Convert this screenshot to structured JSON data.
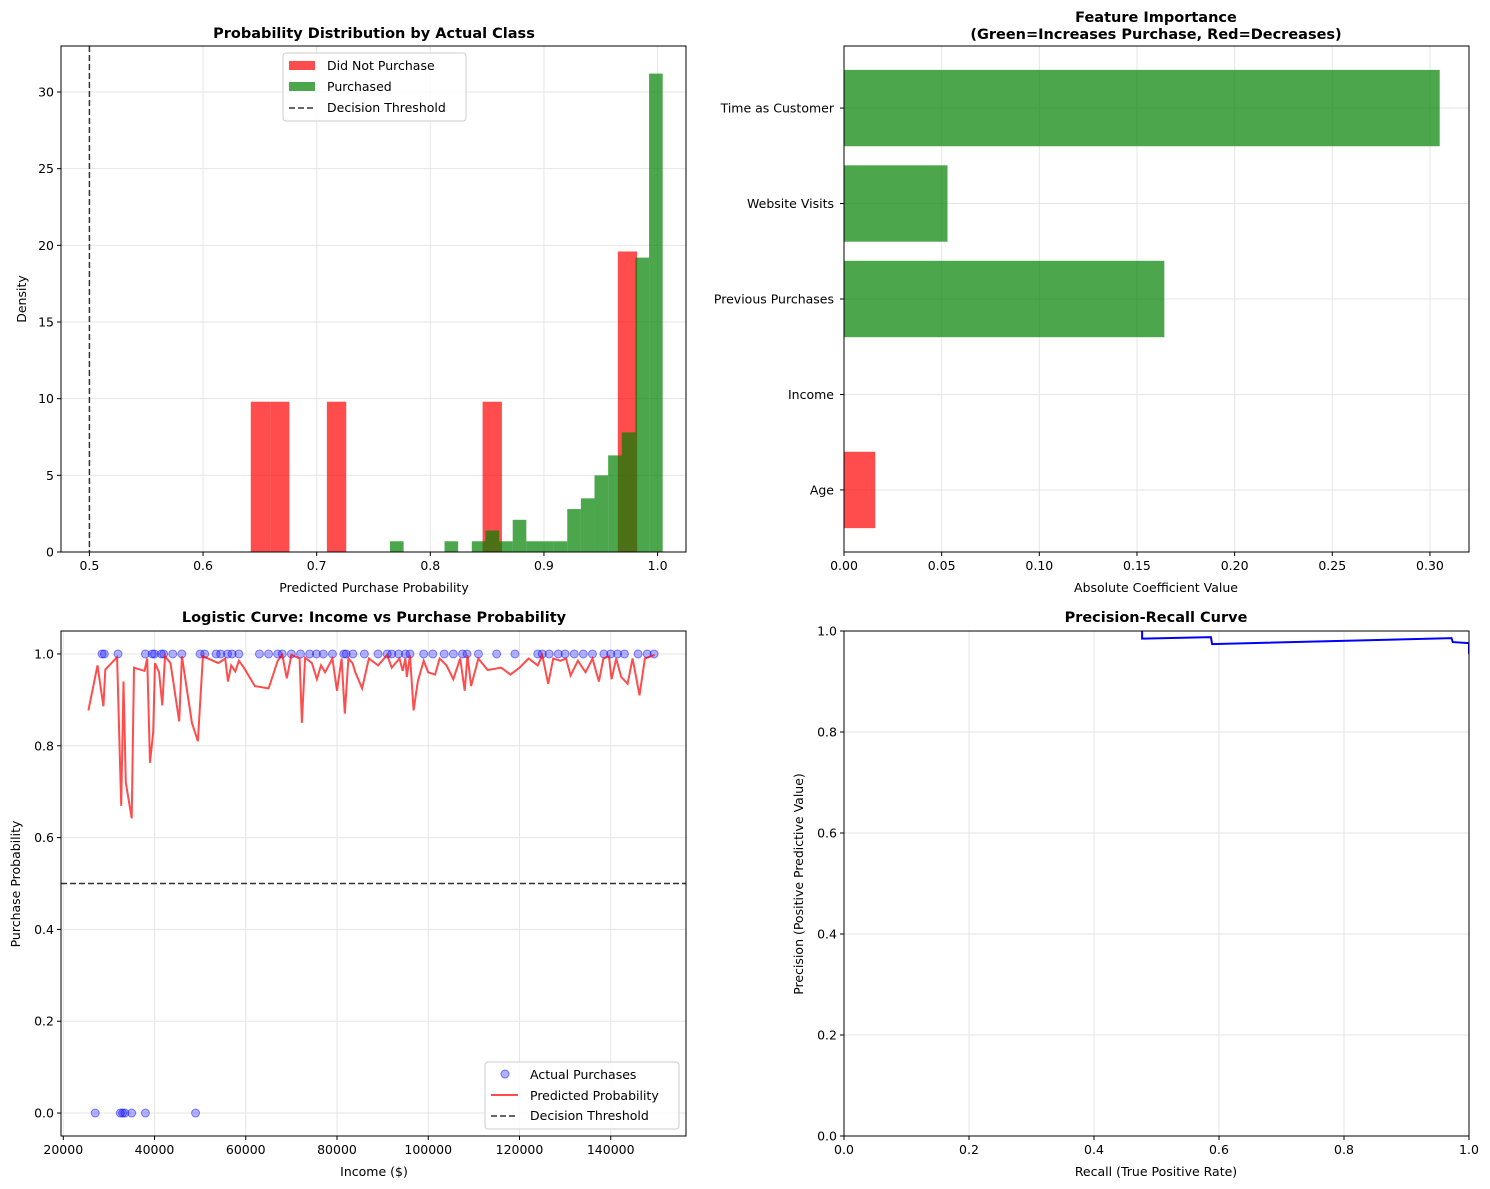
{
  "chart_data": [
    {
      "type": "histogram",
      "title": "Probability Distribution by Actual Class",
      "xlabel": "Predicted Purchase Probability",
      "ylabel": "Density",
      "xlim": [
        0.475,
        1.025
      ],
      "ylim": [
        0,
        33
      ],
      "xticks": [
        0.5,
        0.6,
        0.7,
        0.8,
        0.9,
        1.0
      ],
      "xtick_labels": [
        "0.5",
        "0.6",
        "0.7",
        "0.8",
        "0.9",
        "1.0"
      ],
      "yticks": [
        0,
        5,
        10,
        15,
        20,
        25,
        30
      ],
      "grid": true,
      "legend": "upper-center",
      "legend_entries": [
        "Did Not Purchase",
        "Purchased",
        "Decision Threshold"
      ],
      "threshold": 0.5,
      "series": [
        {
          "name": "Did Not Purchase",
          "color": "#ff0000",
          "bins": [
            [
              0.642,
              0.659,
              9.8
            ],
            [
              0.659,
              0.676,
              9.8
            ],
            [
              0.709,
              0.726,
              9.8
            ],
            [
              0.846,
              0.863,
              9.8
            ],
            [
              0.965,
              0.982,
              19.6
            ]
          ]
        },
        {
          "name": "Purchased",
          "color": "#008000",
          "bins": [
            [
              0.7645,
              0.7765,
              0.7
            ],
            [
              0.7885,
              0.8005,
              0
            ],
            [
              0.8005,
              0.8125,
              0
            ],
            [
              0.8125,
              0.8245,
              0.7
            ],
            [
              0.8365,
              0.8485,
              0.7
            ],
            [
              0.8485,
              0.8605,
              1.4
            ],
            [
              0.8605,
              0.8725,
              0.7
            ],
            [
              0.8725,
              0.8845,
              2.1
            ],
            [
              0.8845,
              0.8965,
              0.7
            ],
            [
              0.8965,
              0.9085,
              0.7
            ],
            [
              0.9085,
              0.9205,
              0.7
            ],
            [
              0.9205,
              0.9325,
              2.8
            ],
            [
              0.9325,
              0.9445,
              3.5
            ],
            [
              0.9445,
              0.9565,
              5.0
            ],
            [
              0.9565,
              0.9685,
              6.3
            ],
            [
              0.9685,
              0.9805,
              7.8
            ],
            [
              0.9805,
              0.9925,
              19.2
            ],
            [
              0.9925,
              1.0045,
              31.2
            ]
          ]
        }
      ]
    },
    {
      "type": "bar",
      "orientation": "horizontal",
      "title": "Feature Importance",
      "subtitle": "(Green=Increases Purchase, Red=Decreases)",
      "xlabel": "Absolute Coefficient Value",
      "ylabel": "",
      "xlim": [
        0,
        0.32
      ],
      "xticks": [
        0.0,
        0.05,
        0.1,
        0.15,
        0.2,
        0.25,
        0.3
      ],
      "xtick_labels": [
        "0.00",
        "0.05",
        "0.10",
        "0.15",
        "0.20",
        "0.25",
        "0.30"
      ],
      "grid": true,
      "categories": [
        "Age",
        "Income",
        "Previous Purchases",
        "Website Visits",
        "Time as Customer"
      ],
      "values": [
        0.016,
        0.0,
        0.164,
        0.053,
        0.305
      ],
      "colors": [
        "#ff0000",
        "#008000",
        "#008000",
        "#008000",
        "#008000"
      ]
    },
    {
      "type": "scatter",
      "title": "Logistic Curve: Income vs Purchase Probability",
      "xlabel": "Income ($)",
      "ylabel": "Purchase Probability",
      "xlim": [
        19500,
        156500
      ],
      "ylim": [
        -0.05,
        1.05
      ],
      "xticks": [
        20000,
        40000,
        60000,
        80000,
        100000,
        120000,
        140000
      ],
      "yticks": [
        0.0,
        0.2,
        0.4,
        0.6,
        0.8,
        1.0
      ],
      "ytick_labels": [
        "0.0",
        "0.2",
        "0.4",
        "0.6",
        "0.8",
        "1.0"
      ],
      "grid": true,
      "legend": "lower-right",
      "legend_entries": [
        "Actual Purchases",
        "Predicted Probability",
        "Decision Threshold"
      ],
      "threshold": 0.5,
      "actual_purchases": {
        "zeros": [
          27000,
          32500,
          33000,
          33500,
          35000,
          38000,
          49000
        ],
        "ones": [
          28500,
          29000,
          32000,
          38000,
          39500,
          40000,
          41500,
          42000,
          44000,
          46000,
          50000,
          51000,
          53500,
          54500,
          56000,
          57000,
          58500,
          63000,
          65000,
          67000,
          68000,
          70000,
          72000,
          74000,
          75500,
          77000,
          79000,
          81500,
          82000,
          83500,
          86000,
          89000,
          91000,
          92000,
          93500,
          95000,
          96000,
          99000,
          101000,
          103500,
          105500,
          107500,
          108500,
          111000,
          115000,
          119000,
          124000,
          125000,
          126500,
          128500,
          130000,
          132000,
          134000,
          136000,
          138500,
          140000,
          141500,
          143000,
          146000,
          148000,
          149500
        ]
      },
      "predicted_curve": [
        [
          25500,
          0.877
        ],
        [
          27500,
          0.975
        ],
        [
          28800,
          0.886
        ],
        [
          29200,
          0.966
        ],
        [
          31800,
          0.993
        ],
        [
          32700,
          0.669
        ],
        [
          33200,
          0.94
        ],
        [
          33700,
          0.72
        ],
        [
          35000,
          0.642
        ],
        [
          35500,
          0.97
        ],
        [
          37800,
          0.963
        ],
        [
          38400,
          0.99
        ],
        [
          39000,
          0.763
        ],
        [
          39700,
          0.83
        ],
        [
          40100,
          0.98
        ],
        [
          41000,
          0.96
        ],
        [
          41700,
          0.888
        ],
        [
          42300,
          0.995
        ],
        [
          43500,
          0.98
        ],
        [
          45400,
          0.853
        ],
        [
          46000,
          0.995
        ],
        [
          48200,
          0.85
        ],
        [
          49500,
          0.81
        ],
        [
          50600,
          0.995
        ],
        [
          54000,
          0.98
        ],
        [
          55500,
          0.99
        ],
        [
          56100,
          0.94
        ],
        [
          56800,
          0.975
        ],
        [
          57700,
          0.962
        ],
        [
          58500,
          0.985
        ],
        [
          59600,
          0.97
        ],
        [
          62000,
          0.93
        ],
        [
          65000,
          0.925
        ],
        [
          67000,
          0.985
        ],
        [
          68000,
          0.998
        ],
        [
          69000,
          0.947
        ],
        [
          70000,
          0.998
        ],
        [
          71800,
          0.99
        ],
        [
          72300,
          0.85
        ],
        [
          73000,
          0.992
        ],
        [
          74500,
          0.98
        ],
        [
          75600,
          0.945
        ],
        [
          76500,
          0.975
        ],
        [
          77400,
          0.96
        ],
        [
          79000,
          0.99
        ],
        [
          80000,
          0.92
        ],
        [
          81000,
          0.99
        ],
        [
          81700,
          0.87
        ],
        [
          82500,
          0.99
        ],
        [
          83400,
          0.98
        ],
        [
          84000,
          0.96
        ],
        [
          85500,
          0.925
        ],
        [
          87000,
          0.99
        ],
        [
          89000,
          0.975
        ],
        [
          91000,
          0.998
        ],
        [
          92000,
          0.97
        ],
        [
          93700,
          0.99
        ],
        [
          94400,
          0.963
        ],
        [
          95000,
          0.99
        ],
        [
          95300,
          0.95
        ],
        [
          96000,
          0.997
        ],
        [
          96800,
          0.877
        ],
        [
          97700,
          0.94
        ],
        [
          99000,
          0.985
        ],
        [
          100000,
          0.96
        ],
        [
          101500,
          0.955
        ],
        [
          102500,
          0.99
        ],
        [
          104000,
          0.975
        ],
        [
          105500,
          0.945
        ],
        [
          107000,
          0.99
        ],
        [
          108000,
          0.92
        ],
        [
          108600,
          0.997
        ],
        [
          109400,
          0.93
        ],
        [
          111000,
          0.99
        ],
        [
          113000,
          0.965
        ],
        [
          116000,
          0.97
        ],
        [
          118000,
          0.955
        ],
        [
          120000,
          0.97
        ],
        [
          122000,
          0.99
        ],
        [
          124000,
          0.975
        ],
        [
          125000,
          0.997
        ],
        [
          126300,
          0.935
        ],
        [
          127400,
          0.99
        ],
        [
          129000,
          0.985
        ],
        [
          130200,
          0.99
        ],
        [
          131200,
          0.953
        ],
        [
          132800,
          0.985
        ],
        [
          134500,
          0.96
        ],
        [
          136000,
          0.99
        ],
        [
          137400,
          0.94
        ],
        [
          138400,
          0.99
        ],
        [
          139600,
          0.995
        ],
        [
          140200,
          0.945
        ],
        [
          141200,
          0.99
        ],
        [
          142300,
          0.95
        ],
        [
          143700,
          0.935
        ],
        [
          144800,
          0.99
        ],
        [
          146300,
          0.91
        ],
        [
          147500,
          0.99
        ],
        [
          149600,
          0.998
        ]
      ],
      "colors": {
        "points": "#0000ff",
        "curve": "#ff0000",
        "threshold": "#333333"
      }
    },
    {
      "type": "line",
      "title": "Precision-Recall Curve",
      "xlabel": "Recall (True Positive Rate)",
      "ylabel": "Precision (Positive Predictive Value)",
      "xlim": [
        0,
        1
      ],
      "ylim": [
        0,
        1
      ],
      "xticks": [
        0.0,
        0.2,
        0.4,
        0.6,
        0.8,
        1.0
      ],
      "yticks": [
        0.0,
        0.2,
        0.4,
        0.6,
        0.8,
        1.0
      ],
      "tick_labels": [
        "0.0",
        "0.2",
        "0.4",
        "0.6",
        "0.8",
        "1.0"
      ],
      "grid": true,
      "color": "#0000ff",
      "points": [
        [
          0.475,
          1.01
        ],
        [
          0.477,
          1.0
        ],
        [
          0.477,
          0.985
        ],
        [
          0.587,
          0.988
        ],
        [
          0.589,
          0.974
        ],
        [
          0.972,
          0.986
        ],
        [
          0.974,
          0.978
        ],
        [
          1.0,
          0.976
        ],
        [
          1.0,
          0.955
        ]
      ]
    }
  ]
}
